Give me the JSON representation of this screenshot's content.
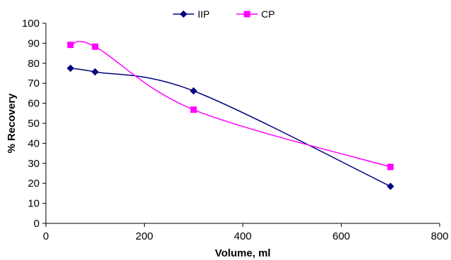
{
  "chart_data": {
    "type": "line",
    "xlabel": "Volume, ml",
    "ylabel": "% Recovery",
    "xlim": [
      0,
      800
    ],
    "ylim": [
      0,
      100
    ],
    "xticks": [
      0,
      200,
      400,
      600,
      800
    ],
    "yticks": [
      0,
      10,
      20,
      30,
      40,
      50,
      60,
      70,
      80,
      90,
      100
    ],
    "grid": false,
    "legend_position": "top-center",
    "smooth": true,
    "series": [
      {
        "name": "IIP",
        "marker": "diamond",
        "color": "#000080",
        "x": [
          50,
          100,
          300,
          700
        ],
        "y": [
          77.5,
          75.7,
          66.2,
          18.5
        ]
      },
      {
        "name": "CP",
        "marker": "square",
        "color": "#FF00FF",
        "x": [
          50,
          100,
          300,
          700
        ],
        "y": [
          89.2,
          88.3,
          56.8,
          28.2
        ]
      }
    ]
  }
}
